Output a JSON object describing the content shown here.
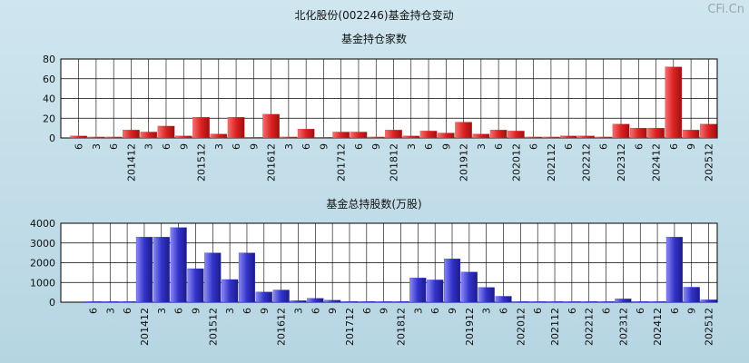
{
  "title": "北化股份(002246)基金持仓变动",
  "watermark": "CFi.Cn",
  "x_labels": [
    "6",
    "3",
    "6",
    "201412",
    "3",
    "6",
    "9",
    "201512",
    "3",
    "6",
    "9",
    "201612",
    "3",
    "6",
    "9",
    "201712",
    "6",
    "9",
    "201812",
    "3",
    "6",
    "9",
    "201912",
    "3",
    "6",
    "202012",
    "6",
    "202112",
    "6",
    "202212",
    "6",
    "202312",
    "6",
    "202412",
    "6",
    "9",
    "202512"
  ],
  "colors": {
    "top_bar": "#dd2222",
    "bottom_bar": "#3333cc",
    "grid": "#000000",
    "plot_bg": "#ffffff"
  },
  "chart_data": [
    {
      "type": "bar",
      "title": "基金持仓家数",
      "ylim": [
        0,
        80
      ],
      "yticks": [
        0,
        20,
        40,
        60,
        80
      ],
      "categories": [
        "6",
        "3",
        "6",
        "201412",
        "3",
        "6",
        "9",
        "201512",
        "3",
        "6",
        "9",
        "201612",
        "3",
        "6",
        "9",
        "201712",
        "6",
        "9",
        "201812",
        "3",
        "6",
        "9",
        "201912",
        "3",
        "6",
        "202012",
        "6",
        "202112",
        "6",
        "202212",
        "6",
        "202312",
        "6",
        "202412",
        "6",
        "9",
        "202512"
      ],
      "values": [
        2,
        1,
        1,
        8,
        6,
        12,
        2,
        21,
        4,
        21,
        0,
        24,
        1,
        9,
        0,
        6,
        6,
        1,
        8,
        2,
        7,
        5,
        16,
        4,
        8,
        7,
        1,
        1,
        2,
        2,
        1,
        14,
        10,
        10,
        72,
        8,
        14
      ]
    },
    {
      "type": "bar",
      "title": "基金总持股数(万股)",
      "ylim": [
        0,
        4000
      ],
      "yticks": [
        0,
        1000,
        2000,
        3000,
        4000
      ],
      "categories": [
        "6",
        "3",
        "6",
        "201412",
        "3",
        "6",
        "9",
        "201512",
        "3",
        "6",
        "9",
        "201612",
        "3",
        "6",
        "9",
        "201712",
        "6",
        "9",
        "201812",
        "3",
        "6",
        "9",
        "201912",
        "3",
        "6",
        "202012",
        "6",
        "202112",
        "6",
        "202212",
        "6",
        "202312",
        "6",
        "202412",
        "6",
        "9",
        "202512"
      ],
      "values": [
        30,
        20,
        20,
        3300,
        3300,
        3780,
        1700,
        2500,
        1150,
        2500,
        520,
        620,
        80,
        200,
        100,
        40,
        40,
        30,
        40,
        1230,
        1130,
        2200,
        1530,
        750,
        300,
        30,
        30,
        30,
        30,
        30,
        20,
        170,
        30,
        30,
        3300,
        760,
        120
      ]
    }
  ]
}
